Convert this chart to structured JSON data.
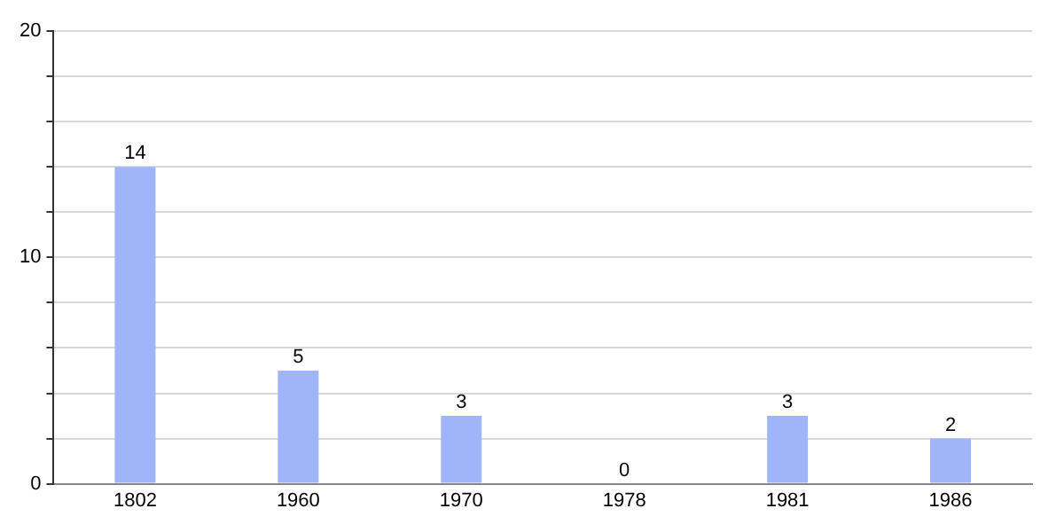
{
  "chart_data": {
    "type": "bar",
    "categories": [
      "1802",
      "1960",
      "1970",
      "1978",
      "1981",
      "1986"
    ],
    "values": [
      14,
      5,
      3,
      0,
      3,
      2
    ],
    "color": "#a0b4fa",
    "ylim": [
      0,
      20
    ],
    "yticks": [
      0,
      {
        "value": 2,
        "label": null
      },
      {
        "value": 4,
        "label": null
      },
      {
        "value": 6,
        "label": null
      },
      {
        "value": 8,
        "label": null
      },
      10,
      {
        "value": 12,
        "label": null
      },
      {
        "value": 14,
        "label": null
      },
      {
        "value": 16,
        "label": null
      },
      {
        "value": 18,
        "label": null
      },
      20
    ],
    "grid": "y",
    "data_labels": true
  }
}
